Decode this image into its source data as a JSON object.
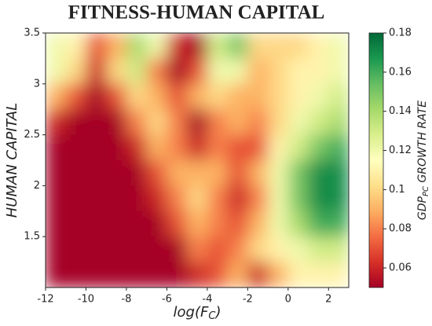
{
  "chart_data": {
    "type": "heatmap",
    "title": "FITNESS-HUMAN CAPITAL",
    "xlabel": [
      "log(F",
      "C",
      ")"
    ],
    "ylabel": "HUMAN CAPITAL",
    "colorbar_label": [
      "GDP",
      "PC",
      " GROWTH RATE"
    ],
    "x": [
      -11.5,
      -10.5,
      -9.5,
      -8.5,
      -7.5,
      -6.5,
      -5.5,
      -4.5,
      -3.5,
      -2.5,
      -1.5,
      -0.5,
      0.5,
      1.5,
      2.5
    ],
    "y": [
      3.375,
      3.125,
      2.875,
      2.625,
      2.375,
      2.125,
      1.875,
      1.625,
      1.375,
      1.125
    ],
    "values": [
      [
        0.12,
        0.11,
        0.07,
        0.09,
        0.14,
        0.12,
        0.06,
        0.05,
        0.13,
        0.15,
        0.1,
        0.1,
        0.1,
        0.11,
        0.12
      ],
      [
        0.12,
        0.1,
        0.06,
        0.1,
        0.13,
        0.08,
        0.05,
        0.07,
        0.12,
        0.12,
        0.09,
        0.1,
        0.11,
        0.11,
        0.12
      ],
      [
        0.09,
        0.07,
        0.05,
        0.07,
        0.1,
        0.09,
        0.07,
        0.09,
        0.1,
        0.09,
        0.09,
        0.1,
        0.11,
        0.12,
        0.13
      ],
      [
        0.06,
        0.05,
        0.05,
        0.05,
        0.08,
        0.1,
        0.08,
        0.05,
        0.08,
        0.09,
        0.08,
        0.1,
        0.12,
        0.13,
        0.14
      ],
      [
        0.05,
        0.05,
        0.05,
        0.05,
        0.06,
        0.09,
        0.08,
        0.06,
        0.08,
        0.07,
        0.07,
        0.11,
        0.13,
        0.15,
        0.16
      ],
      [
        0.05,
        0.05,
        0.05,
        0.05,
        0.05,
        0.07,
        0.09,
        0.09,
        0.09,
        0.07,
        0.09,
        0.12,
        0.15,
        0.17,
        0.17
      ],
      [
        0.05,
        0.05,
        0.05,
        0.05,
        0.05,
        0.06,
        0.08,
        0.1,
        0.08,
        0.06,
        0.08,
        0.12,
        0.15,
        0.17,
        0.17
      ],
      [
        0.05,
        0.05,
        0.05,
        0.05,
        0.05,
        0.05,
        0.07,
        0.09,
        0.08,
        0.07,
        0.09,
        0.12,
        0.14,
        0.16,
        0.16
      ],
      [
        0.05,
        0.05,
        0.05,
        0.05,
        0.05,
        0.05,
        0.05,
        0.08,
        0.07,
        0.08,
        0.1,
        0.11,
        0.12,
        0.13,
        0.13
      ],
      [
        0.05,
        0.05,
        0.05,
        0.05,
        0.05,
        0.05,
        0.05,
        0.06,
        0.07,
        0.09,
        0.06,
        0.09,
        0.11,
        0.11,
        0.11
      ]
    ],
    "xlim": [
      -12,
      3
    ],
    "xticks": [
      -12,
      -10,
      -8,
      -6,
      -4,
      -2,
      0,
      2
    ],
    "ylim": [
      1.0,
      3.5
    ],
    "yticks": [
      1.5,
      2.0,
      2.5,
      3.0,
      3.5
    ],
    "clim": [
      0.05,
      0.18
    ],
    "cticks": [
      0.06,
      0.08,
      0.1,
      0.12,
      0.14,
      0.16,
      0.18
    ],
    "colormap": [
      "#a50026",
      "#d73027",
      "#f46d43",
      "#fdae61",
      "#fee08b",
      "#ffffbf",
      "#d9ef8b",
      "#a6d96a",
      "#66bd63",
      "#1a9850",
      "#006837"
    ]
  }
}
